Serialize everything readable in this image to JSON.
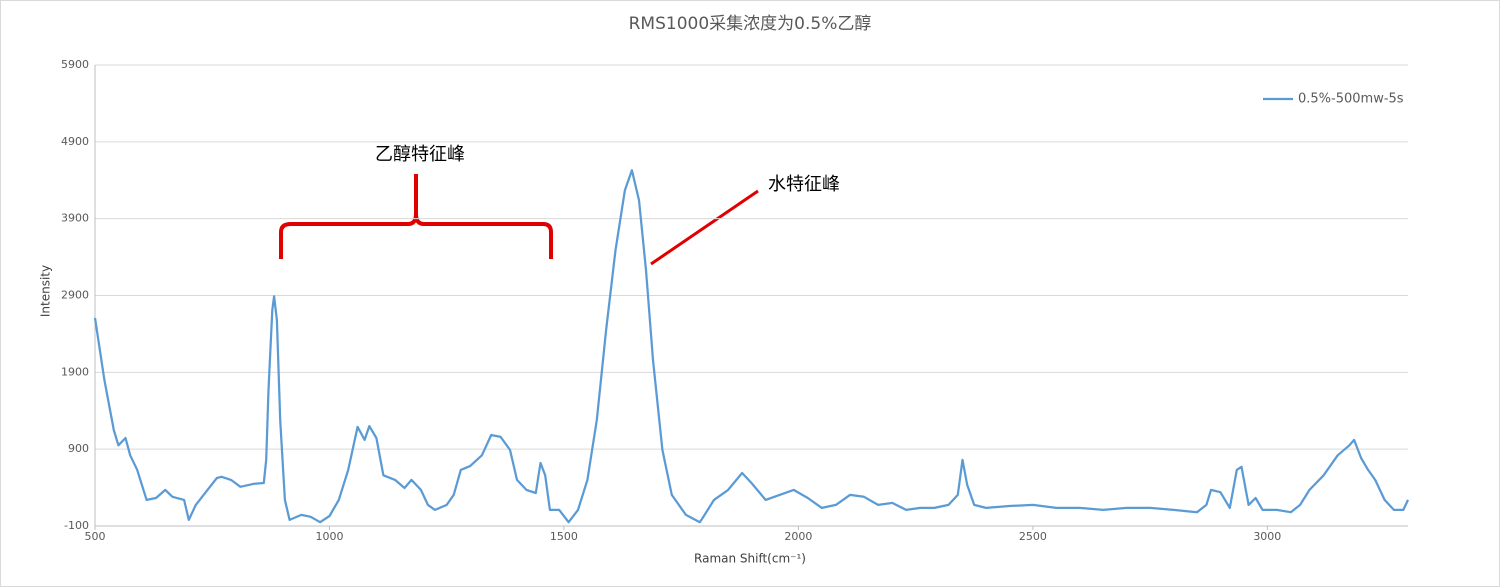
{
  "chart_data": {
    "type": "line",
    "title": "RMS1000采集浓度为0.5%乙醇",
    "x_label": "Raman Shift(cm⁻¹)",
    "y_label": "Intensity",
    "annotations": [
      "乙醇特征峰",
      "水特征峰"
    ],
    "x": [
      500,
      520,
      540,
      550,
      565,
      575,
      590,
      610,
      630,
      650,
      665,
      690,
      700,
      715,
      740,
      760,
      770,
      790,
      810,
      840,
      860,
      865,
      870,
      878,
      882,
      888,
      895,
      905,
      915,
      940,
      960,
      980,
      1000,
      1020,
      1040,
      1060,
      1075,
      1085,
      1100,
      1115,
      1140,
      1160,
      1175,
      1195,
      1210,
      1225,
      1250,
      1265,
      1280,
      1300,
      1325,
      1345,
      1365,
      1385,
      1400,
      1420,
      1440,
      1450,
      1460,
      1470,
      1490,
      1510,
      1530,
      1550,
      1570,
      1590,
      1610,
      1630,
      1645,
      1660,
      1675,
      1690,
      1710,
      1730,
      1760,
      1790,
      1800,
      1820,
      1850,
      1880,
      1900,
      1930,
      1960,
      1990,
      2020,
      2050,
      2080,
      2110,
      2140,
      2170,
      2200,
      2230,
      2260,
      2290,
      2320,
      2340,
      2350,
      2360,
      2375,
      2400,
      2450,
      2500,
      2550,
      2600,
      2650,
      2700,
      2750,
      2800,
      2850,
      2870,
      2880,
      2900,
      2920,
      2935,
      2945,
      2960,
      2975,
      2990,
      3020,
      3050,
      3070,
      3090,
      3120,
      3150,
      3175,
      3185,
      3200,
      3215,
      3230,
      3250,
      3270,
      3290,
      3300
    ],
    "series": [
      {
        "name": "0.5%-500mw-5s",
        "color": "#5b9bd5",
        "values": [
          2608,
          1800,
          1150,
          950,
          1045,
          820,
          630,
          240,
          265,
          370,
          280,
          240,
          -20,
          175,
          370,
          525,
          540,
          500,
          410,
          450,
          460,
          760,
          1670,
          2710,
          2890,
          2580,
          1280,
          240,
          -20,
          45,
          20,
          -50,
          30,
          240,
          630,
          1190,
          1020,
          1200,
          1045,
          560,
          500,
          395,
          500,
          370,
          175,
          110,
          175,
          305,
          630,
          680,
          820,
          1085,
          1060,
          890,
          500,
          370,
          330,
          720,
          560,
          110,
          110,
          -50,
          110,
          500,
          1280,
          2450,
          3490,
          4270,
          4530,
          4140,
          3230,
          2060,
          890,
          305,
          45,
          -50,
          45,
          240,
          370,
          590,
          460,
          240,
          305,
          370,
          265,
          135,
          175,
          305,
          280,
          175,
          200,
          110,
          135,
          135,
          175,
          305,
          760,
          435,
          175,
          135,
          160,
          175,
          135,
          135,
          110,
          135,
          135,
          110,
          80,
          175,
          370,
          340,
          135,
          630,
          670,
          175,
          265,
          110,
          110,
          80,
          175,
          370,
          560,
          820,
          950,
          1020,
          785,
          630,
          500,
          240,
          110,
          110,
          240
        ]
      }
    ],
    "xlim": [
      500,
      3300
    ],
    "ylim": [
      -100,
      5900
    ],
    "xticks": [
      500,
      1000,
      1500,
      2000,
      2500,
      3000
    ],
    "yticks": [
      -100,
      900,
      1900,
      2900,
      3900,
      4900,
      5900
    ],
    "grid": true,
    "legend": "upper right"
  }
}
